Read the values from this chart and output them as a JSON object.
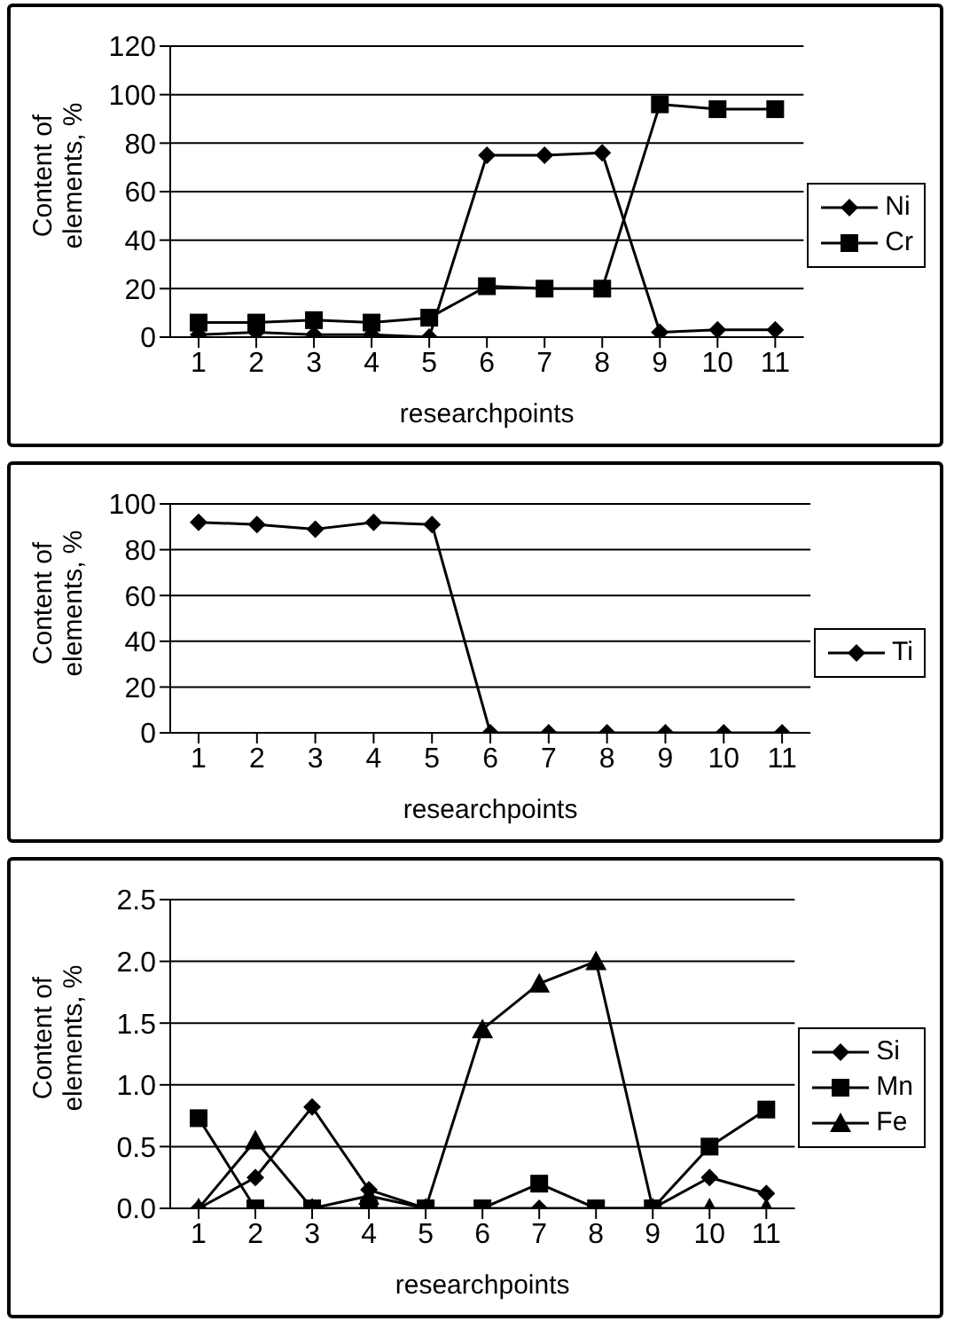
{
  "chart_data": [
    {
      "type": "line",
      "xlabel": "researchpoints",
      "ylabel": "Content of elements, %",
      "categories": [
        "1",
        "2",
        "3",
        "4",
        "5",
        "6",
        "7",
        "8",
        "9",
        "10",
        "11"
      ],
      "ylim": [
        0,
        120
      ],
      "yticks": [
        0,
        20,
        40,
        60,
        80,
        100,
        120
      ],
      "grid": "y",
      "legend": "right",
      "series": [
        {
          "name": "Ni",
          "color": "#000000",
          "marker": "diamond",
          "values": [
            1,
            2,
            1,
            1,
            0,
            75,
            75,
            76,
            2,
            3,
            3
          ]
        },
        {
          "name": "Cr",
          "color": "#000000",
          "marker": "square",
          "values": [
            6,
            6,
            7,
            6,
            8,
            21,
            20,
            20,
            96,
            94,
            94
          ]
        }
      ]
    },
    {
      "type": "line",
      "xlabel": "researchpoints",
      "ylabel": "Content of elements, %",
      "categories": [
        "1",
        "2",
        "3",
        "4",
        "5",
        "6",
        "7",
        "8",
        "9",
        "10",
        "11"
      ],
      "ylim": [
        0,
        100
      ],
      "yticks": [
        0,
        20,
        40,
        60,
        80,
        100
      ],
      "grid": "y",
      "legend": "right",
      "series": [
        {
          "name": "Ti",
          "color": "#000000",
          "marker": "diamond",
          "values": [
            92,
            91,
            89,
            92,
            91,
            0,
            0,
            0,
            0,
            0,
            0
          ]
        }
      ]
    },
    {
      "type": "line",
      "xlabel": "researchpoints",
      "ylabel": "Content of elements, %",
      "categories": [
        "1",
        "2",
        "3",
        "4",
        "5",
        "6",
        "7",
        "8",
        "9",
        "10",
        "11"
      ],
      "ylim": [
        0,
        2.5
      ],
      "yticks": [
        {
          "value": 0,
          "label": "0.0"
        },
        {
          "value": 0.5,
          "label": "0.5"
        },
        {
          "value": 1,
          "label": "1.0"
        },
        1.5,
        {
          "value": 2,
          "label": "2.0"
        },
        2.5
      ],
      "grid": "y",
      "legend": "right",
      "series": [
        {
          "name": "Si",
          "color": "#000000",
          "marker": "diamond",
          "values": [
            0,
            0.25,
            0.82,
            0.15,
            0,
            0,
            0,
            0,
            0,
            0.25,
            0.12
          ]
        },
        {
          "name": "Mn",
          "color": "#000000",
          "marker": "square",
          "values": [
            0.73,
            0,
            0,
            0,
            0,
            0,
            0.2,
            0,
            0,
            0.5,
            0.8
          ]
        },
        {
          "name": "Fe",
          "color": "#000000",
          "marker": "triangle",
          "values": [
            0,
            0.55,
            0,
            0.1,
            0,
            1.45,
            1.82,
            2.0,
            0,
            0,
            0
          ]
        }
      ]
    }
  ]
}
